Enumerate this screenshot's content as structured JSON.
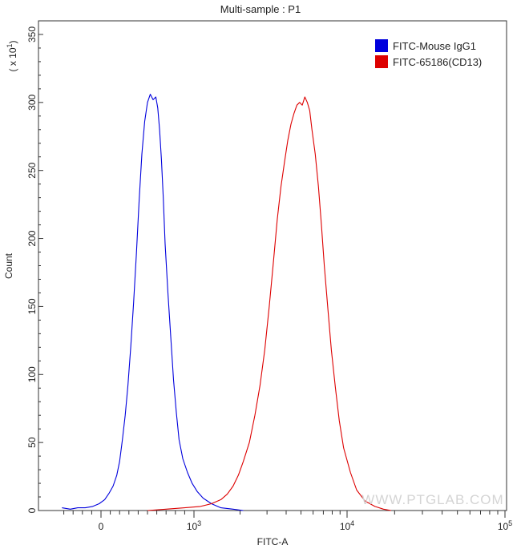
{
  "chart_data": {
    "type": "area",
    "title": "Multi-sample : P1",
    "xlabel": "FITC-A",
    "ylabel": "Count",
    "y_multiplier_label": "( x 10",
    "y_multiplier_exponent": "1",
    "y_multiplier_close": ")",
    "x_scale": "biexponential",
    "x_ticks": [
      {
        "value": 0,
        "base": "0",
        "exp": ""
      },
      {
        "value": 1000,
        "base": "10",
        "exp": "3"
      },
      {
        "value": 10000,
        "base": "10",
        "exp": "4"
      },
      {
        "value": 100000,
        "base": "10",
        "exp": "5"
      }
    ],
    "ylim": [
      0,
      360
    ],
    "yticks": [
      0,
      50,
      100,
      150,
      200,
      250,
      300,
      350
    ],
    "grid": false,
    "legend_position": "top-right",
    "watermark": "WWW.PTGLAB.COM",
    "series": [
      {
        "name": "FITC-Mouse IgG1",
        "color": "#0000dd",
        "x": [
          -420,
          -330,
          -250,
          -170,
          -90,
          -20,
          40,
          90,
          130,
          170,
          200,
          230,
          260,
          290,
          320,
          350,
          380,
          410,
          440,
          470,
          500,
          530,
          560,
          590,
          610,
          630,
          650,
          670,
          690,
          720,
          750,
          780,
          810,
          840,
          880,
          930,
          980,
          1050,
          1150,
          1300,
          1500,
          1800,
          2100
        ],
        "y": [
          2,
          1,
          2,
          2,
          3,
          5,
          8,
          13,
          18,
          26,
          36,
          52,
          70,
          92,
          120,
          152,
          188,
          228,
          262,
          286,
          300,
          306,
          302,
          304,
          296,
          280,
          258,
          230,
          196,
          160,
          128,
          96,
          72,
          52,
          38,
          28,
          20,
          14,
          9,
          5,
          2,
          1,
          0
        ]
      },
      {
        "name": "FITC-65186(CD13)",
        "color": "#dd0000",
        "x": [
          500,
          700,
          900,
          1100,
          1300,
          1500,
          1650,
          1800,
          1950,
          2100,
          2300,
          2500,
          2700,
          2900,
          3100,
          3300,
          3500,
          3700,
          3900,
          4100,
          4300,
          4500,
          4700,
          4900,
          5100,
          5300,
          5500,
          5700,
          5900,
          6200,
          6500,
          6800,
          7100,
          7500,
          7900,
          8400,
          8900,
          9500,
          10500,
          11500,
          13000,
          15000,
          17000,
          19000
        ],
        "y": [
          0,
          1,
          2,
          3,
          5,
          8,
          12,
          18,
          26,
          36,
          50,
          70,
          92,
          118,
          150,
          182,
          214,
          238,
          256,
          272,
          284,
          292,
          298,
          300,
          298,
          304,
          300,
          294,
          280,
          262,
          238,
          210,
          180,
          148,
          118,
          90,
          66,
          46,
          28,
          15,
          7,
          3,
          1,
          0
        ]
      }
    ]
  }
}
